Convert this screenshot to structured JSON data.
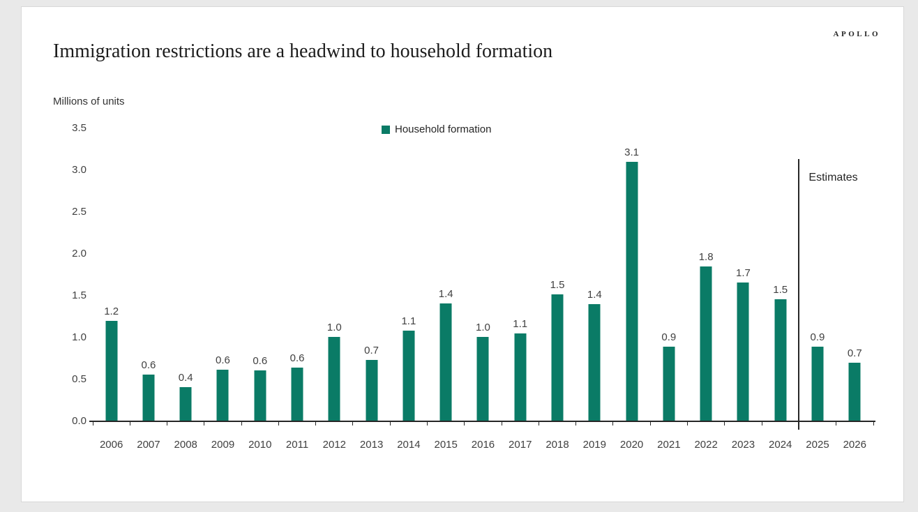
{
  "page": {
    "background_color": "#e9e9e9",
    "card_background": "#ffffff",
    "card_border_color": "#d8d8d8"
  },
  "header": {
    "brand": "APOLLO"
  },
  "chart_data": {
    "type": "bar",
    "title": "Immigration restrictions are a headwind to household formation",
    "ylabel": "Millions of units",
    "legend": [
      "Household formation"
    ],
    "legend_position": "top-center",
    "grid": false,
    "ylim": [
      0,
      3.5
    ],
    "ytick_step": 0.5,
    "categories": [
      "2006",
      "2007",
      "2008",
      "2009",
      "2010",
      "2011",
      "2012",
      "2013",
      "2014",
      "2015",
      "2016",
      "2017",
      "2018",
      "2019",
      "2020",
      "2021",
      "2022",
      "2023",
      "2024",
      "2025",
      "2026"
    ],
    "values": [
      1.2,
      0.6,
      0.4,
      0.6,
      0.6,
      0.6,
      1.0,
      0.7,
      1.1,
      1.4,
      1.0,
      1.1,
      1.5,
      1.4,
      3.1,
      0.9,
      1.8,
      1.7,
      1.5,
      0.9,
      0.7
    ],
    "draw_values": [
      1.2,
      0.56,
      0.41,
      0.62,
      0.61,
      0.64,
      1.01,
      0.73,
      1.08,
      1.41,
      1.01,
      1.05,
      1.52,
      1.4,
      3.1,
      0.89,
      1.85,
      1.66,
      1.46,
      0.89,
      0.7
    ],
    "bar_color": "#0a7b66",
    "axis_color": "#262626",
    "text_color": "#404040",
    "annotation": {
      "label": "Estimates",
      "separator_after_category": "2024"
    }
  }
}
